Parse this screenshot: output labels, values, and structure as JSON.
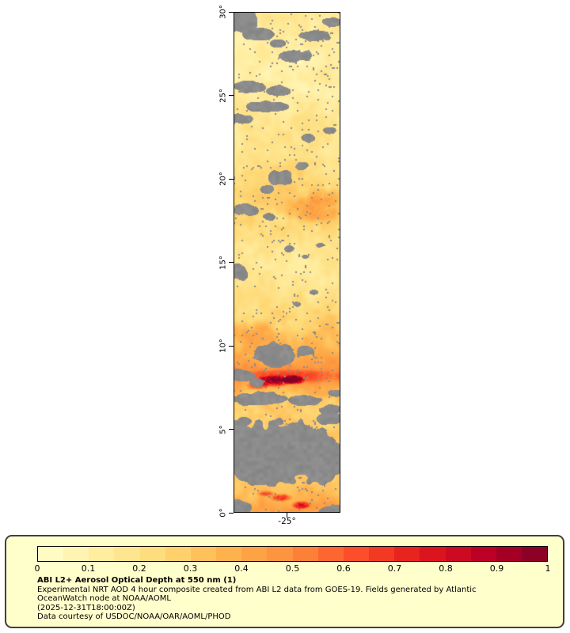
{
  "legend": {
    "title": "ABI L2+ Aerosol Optical Depth at 550 nm (1)",
    "lines": [
      "Experimental NRT AOD 4 hour composite created from ABI L2 data from GOES-19. Fields generated by Atlantic",
      "OceanWatch node at NOAA/AOML",
      "(2025-12-31T18:00:00Z)",
      "Data courtesy of USDOC/NOAA/OAR/AOML/PHOD"
    ],
    "panel_background": "#ffffcc",
    "panel_border": "#404040"
  },
  "chart_data": {
    "type": "heatmap",
    "title": "ABI L2+ Aerosol Optical Depth at 550 nm (1)",
    "subtitle": "Experimental NRT AOD 4 hour composite created from ABI L2 data from GOES-19. Fields generated by Atlantic OceanWatch node at NOAA/AOML",
    "timestamp": "(2025-12-31T18:00:00Z)",
    "credit": "Data courtesy of USDOC/NOAA/OAR/AOML/PHOD",
    "colorbar": {
      "ticks": [
        "0",
        "0.1",
        "0.2",
        "0.3",
        "0.4",
        "0.5",
        "0.6",
        "0.7",
        "0.8",
        "0.9",
        "1"
      ],
      "range": [
        0,
        1
      ],
      "segments": 20
    },
    "colormap": [
      "#ffffcc",
      "#ffeda0",
      "#fed976",
      "#feb24c",
      "#fd8d3c",
      "#fc4e2a",
      "#e31a1c",
      "#bd0026",
      "#800026"
    ],
    "axes": {
      "lat_range": [
        0,
        30
      ],
      "lon_range": [
        -28.2,
        -21.8
      ],
      "lat_ticks": [
        {
          "label": "30°",
          "value": 30
        },
        {
          "label": "25°",
          "value": 25
        },
        {
          "label": "20°",
          "value": 20
        },
        {
          "label": "15°",
          "value": 15
        },
        {
          "label": "10°",
          "value": 10
        },
        {
          "label": "5°",
          "value": 5
        },
        {
          "label": "0°",
          "value": 0
        }
      ],
      "lon_ticks": [
        {
          "label": "-25°",
          "value": -25
        }
      ]
    },
    "noise_amplitude": 0.16,
    "aod_profile_by_latitude": [
      [
        30,
        0.14
      ],
      [
        28,
        0.11
      ],
      [
        26,
        0.13
      ],
      [
        24,
        0.15
      ],
      [
        22,
        0.18
      ],
      [
        20,
        0.25
      ],
      [
        19,
        0.3
      ],
      [
        18,
        0.28
      ],
      [
        17,
        0.22
      ],
      [
        16,
        0.17
      ],
      [
        15,
        0.16
      ],
      [
        14,
        0.18
      ],
      [
        13,
        0.2
      ],
      [
        12,
        0.24
      ],
      [
        11,
        0.3
      ],
      [
        10.5,
        0.34
      ],
      [
        10,
        0.36
      ],
      [
        9,
        0.45
      ],
      [
        8.5,
        0.52
      ],
      [
        8,
        0.48
      ],
      [
        7.5,
        0.38
      ],
      [
        7,
        0.32
      ],
      [
        6,
        0.28
      ],
      [
        5,
        0.3
      ],
      [
        4,
        0.33
      ],
      [
        3,
        0.32
      ],
      [
        2,
        0.3
      ],
      [
        1,
        0.36
      ],
      [
        0.5,
        0.42
      ],
      [
        0,
        0.45
      ]
    ],
    "aod_hotspots": [
      [
        0.37,
        0.737,
        0.15,
        0.01,
        0.4
      ],
      [
        0.556,
        0.734,
        0.09,
        0.008,
        0.5
      ],
      [
        0.22,
        0.745,
        0.09,
        0.007,
        0.3
      ],
      [
        0.5,
        0.728,
        0.5,
        0.012,
        0.15
      ],
      [
        0.74,
        0.394,
        0.26,
        0.022,
        0.12
      ],
      [
        0.87,
        0.37,
        0.15,
        0.016,
        0.1
      ],
      [
        0.15,
        0.64,
        0.2,
        0.02,
        0.08
      ],
      [
        0.44,
        0.969,
        0.09,
        0.007,
        0.35
      ],
      [
        0.63,
        0.984,
        0.075,
        0.007,
        0.4
      ],
      [
        0.3,
        0.961,
        0.075,
        0.005,
        0.25
      ]
    ],
    "no_data": {
      "color": "#8b8b8b",
      "regions": [
        [
          0.06,
          0.016,
          0.19,
          0.024
        ],
        [
          0.22,
          0.044,
          0.14,
          0.014
        ],
        [
          0.56,
          0.087,
          0.16,
          0.012
        ],
        [
          0.41,
          0.063,
          0.075,
          0.009
        ],
        [
          0.93,
          0.019,
          0.09,
          0.009
        ],
        [
          0.78,
          0.047,
          0.15,
          0.01
        ],
        [
          0.15,
          0.15,
          0.16,
          0.013
        ],
        [
          0.41,
          0.157,
          0.11,
          0.01
        ],
        [
          0.3,
          0.189,
          0.19,
          0.011
        ],
        [
          0.074,
          0.213,
          0.11,
          0.01
        ],
        [
          0.7,
          0.252,
          0.075,
          0.008
        ],
        [
          0.89,
          0.236,
          0.06,
          0.007
        ],
        [
          0.44,
          0.331,
          0.12,
          0.016
        ],
        [
          0.3,
          0.354,
          0.075,
          0.01
        ],
        [
          0.63,
          0.307,
          0.06,
          0.008
        ],
        [
          0.11,
          0.394,
          0.105,
          0.013
        ],
        [
          0.33,
          0.409,
          0.06,
          0.008
        ],
        [
          0.52,
          0.472,
          0.052,
          0.007
        ],
        [
          0.67,
          0.488,
          0.045,
          0.005
        ],
        [
          0.81,
          0.465,
          0.037,
          0.005
        ],
        [
          0.037,
          0.52,
          0.09,
          0.016
        ],
        [
          0.74,
          0.559,
          0.045,
          0.005
        ],
        [
          0.59,
          0.583,
          0.037,
          0.005
        ],
        [
          0.41,
          0.685,
          0.22,
          0.023
        ],
        [
          0.67,
          0.677,
          0.09,
          0.01
        ],
        [
          0.074,
          0.724,
          0.11,
          0.013
        ],
        [
          0.22,
          0.74,
          0.075,
          0.008
        ],
        [
          0.22,
          0.772,
          0.26,
          0.013
        ],
        [
          0.67,
          0.775,
          0.15,
          0.01
        ],
        [
          0.96,
          0.761,
          0.075,
          0.008
        ],
        [
          0.89,
          0.795,
          0.11,
          0.01
        ],
        [
          0.89,
          0.811,
          0.13,
          0.013
        ],
        [
          0.074,
          0.819,
          0.09,
          0.01
        ],
        [
          0.44,
          0.874,
          0.6,
          0.056
        ],
        [
          0.15,
          0.853,
          0.22,
          0.032
        ],
        [
          0.81,
          0.898,
          0.22,
          0.04
        ],
        [
          0.3,
          0.921,
          0.3,
          0.028
        ],
        [
          0.037,
          0.99,
          0.11,
          0.016
        ],
        [
          0.96,
          0.995,
          0.15,
          0.013
        ]
      ]
    }
  }
}
